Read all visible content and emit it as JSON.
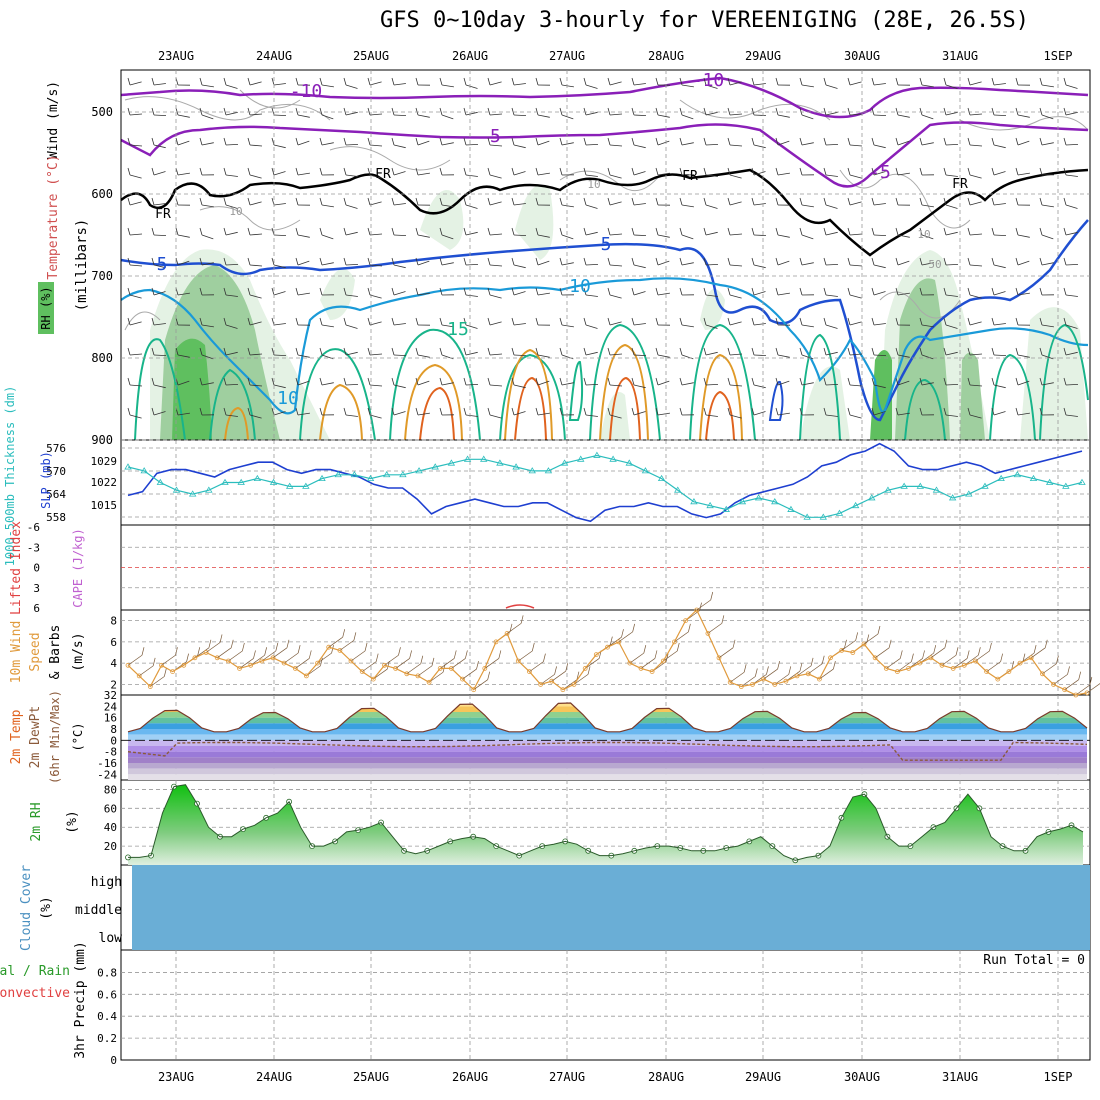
{
  "title": "GFS 0~10day 3-hourly for VEREENIGING (28E, 26.5S)",
  "dates": [
    "23AUG",
    "24AUG",
    "25AUG",
    "26AUG",
    "27AUG",
    "28AUG",
    "29AUG",
    "30AUG",
    "31AUG",
    "1SEP"
  ],
  "colors": {
    "temp_cold": "#8a1fb8",
    "temp_fr": "#000000",
    "temp_5": "#1f4fd1",
    "temp_10": "#1a9ad8",
    "temp_15": "#18b48a",
    "temp_20": "#e09a28",
    "temp_25": "#e0621e",
    "rh_light": "#e4f2e4",
    "rh_mid": "#9fcf9f",
    "rh_dark": "#5fbf5f",
    "slp": "#1e3fd0",
    "thickness": "#2bbdbd",
    "wind": "#e09a3c",
    "rh2m": "#2a8a2a",
    "dewpt": "#8b5a3a",
    "cloud": "#6aaed6",
    "grid": "#999999"
  },
  "panels": {
    "upper": {
      "ylabel_wind": "Wind (m/s)",
      "ylabel_temp": "Temperature (°C)",
      "ylabel_rh": "RH (%)",
      "ylabel_p": "(millibars)",
      "yticks": [
        "500",
        "600",
        "700",
        "800",
        "900"
      ],
      "contour_labels": [
        "-10",
        "-10",
        "-5",
        "-5",
        "FR",
        "FR",
        "FR",
        "FR",
        "FR",
        "5",
        "5",
        "10",
        "10",
        "15",
        "10",
        "10",
        "10",
        "50"
      ]
    },
    "slp": {
      "ylabel_thk": "1000-500mb Thickness (dm)",
      "ylabel_slp": "SLP (mb)",
      "thk_ticks": [
        "576",
        "570",
        "564",
        "558"
      ],
      "slp_ticks": [
        "1029",
        "1022",
        "1015"
      ]
    },
    "lifted": {
      "ylabel_li": "Lifted Index",
      "ylabel_cape": "CAPE (J/kg)",
      "ticks": [
        "-6",
        "-3",
        "0",
        "3",
        "6"
      ]
    },
    "wind10": {
      "ylabel1": "10m Wind",
      "ylabel2": "Speed",
      "ylabel3": "& Barbs",
      "unit": "(m/s)",
      "ticks": [
        "8",
        "6",
        "4",
        "2"
      ]
    },
    "temp2m": {
      "ylabel1": "2m Temp",
      "ylabel2": "2m DewPt",
      "ylabel3": "(6hr Min/Max)",
      "unit": "(°C)",
      "ticks": [
        "32",
        "24",
        "16",
        "8",
        "0",
        "-8",
        "-16",
        "-24"
      ]
    },
    "rh2m": {
      "ylabel": "2m RH",
      "unit": "(%)",
      "ticks": [
        "80",
        "60",
        "40",
        "20"
      ]
    },
    "cloud": {
      "ylabel": "Cloud Cover",
      "unit": "(%)",
      "levels": [
        "high",
        "middle",
        "low"
      ]
    },
    "precip": {
      "ylabel": "3hr Precip (mm)",
      "legend1": "Total / Rain",
      "legend2": "Convective",
      "run_total": "Run Total = 0",
      "ticks": [
        "0.8",
        "0.6",
        "0.4",
        "0.2",
        "0"
      ]
    }
  },
  "chart_data": [
    {
      "type": "line",
      "name": "2m RH",
      "xlabel": "",
      "ylabel": "2m RH (%)",
      "ylim": [
        0,
        90
      ],
      "x_step_hours": 3,
      "values": [
        8,
        8,
        10,
        55,
        83,
        85,
        65,
        40,
        30,
        30,
        38,
        42,
        50,
        55,
        67,
        40,
        20,
        20,
        25,
        35,
        37,
        40,
        45,
        30,
        15,
        12,
        15,
        20,
        25,
        28,
        30,
        28,
        20,
        15,
        10,
        15,
        20,
        22,
        25,
        22,
        15,
        10,
        10,
        12,
        15,
        18,
        20,
        20,
        18,
        15,
        15,
        15,
        18,
        20,
        25,
        30,
        20,
        10,
        5,
        8,
        10,
        20,
        50,
        72,
        75,
        60,
        30,
        20,
        20,
        30,
        40,
        45,
        60,
        75,
        60,
        30,
        20,
        15,
        15,
        30,
        35,
        38,
        42,
        35
      ]
    },
    {
      "type": "line",
      "name": "10m Wind Speed",
      "xlabel": "",
      "ylabel": "(m/s)",
      "ylim": [
        1,
        9
      ],
      "x_step_hours": 3,
      "values": [
        3.8,
        2.8,
        1.8,
        3.8,
        3.2,
        3.8,
        4.5,
        5,
        4.5,
        4.2,
        3.5,
        3.8,
        4.2,
        4.5,
        4,
        3.5,
        2.8,
        4,
        5.5,
        5.2,
        4.2,
        3.2,
        2.5,
        3.8,
        3.5,
        3,
        2.8,
        2.2,
        3.5,
        3.5,
        2.5,
        1.5,
        3.5,
        6,
        6.8,
        4.2,
        3.2,
        2,
        2.3,
        1.5,
        2,
        3.5,
        4.8,
        5.5,
        6,
        4,
        3.5,
        3.2,
        4.2,
        6,
        8,
        9,
        6.8,
        4.5,
        2.2,
        1.8,
        2,
        2.5,
        2,
        2.3,
        2.8,
        3,
        2.5,
        4.5,
        5.2,
        5,
        5.8,
        4.5,
        3.5,
        3.2,
        3.5,
        4,
        4.5,
        3.8,
        3.5,
        3.8,
        4.2,
        3.2,
        2.5,
        3.2,
        4,
        4.5,
        3,
        2,
        1.5,
        1,
        1.2
      ]
    },
    {
      "type": "line",
      "name": "SLP",
      "xlabel": "",
      "ylabel": "SLP (mb)",
      "ylim": [
        1010,
        1033
      ],
      "x_step_hours": 3,
      "values": [
        1018,
        1019,
        1024,
        1025,
        1025,
        1024,
        1023,
        1025,
        1026,
        1027,
        1027,
        1025,
        1024,
        1025,
        1025,
        1024,
        1023,
        1021,
        1020,
        1020,
        1017,
        1013,
        1015,
        1016,
        1017,
        1016,
        1015,
        1015,
        1016,
        1016,
        1014,
        1012,
        1011,
        1014,
        1015,
        1015,
        1016,
        1015,
        1015,
        1013,
        1012,
        1013,
        1016,
        1018,
        1019,
        1020,
        1021,
        1023,
        1026,
        1027,
        1029,
        1030,
        1032,
        1030,
        1026,
        1025,
        1025,
        1026,
        1027,
        1026,
        1024,
        1025,
        1026,
        1027,
        1028,
        1029,
        1030
      ]
    },
    {
      "type": "line",
      "name": "1000-500mb Thickness",
      "xlabel": "",
      "ylabel": "Thickness (dm)",
      "ylim": [
        556,
        578
      ],
      "x_step_hours": 3,
      "values": [
        571,
        570,
        567,
        565,
        564,
        565,
        567,
        567,
        568,
        567,
        566,
        566,
        568,
        569,
        569,
        568,
        569,
        569,
        570,
        571,
        572,
        573,
        573,
        572,
        571,
        570,
        570,
        572,
        573,
        574,
        573,
        572,
        570,
        568,
        565,
        562,
        561,
        560,
        562,
        563,
        562,
        560,
        558,
        558,
        559,
        561,
        563,
        565,
        566,
        566,
        565,
        563,
        564,
        566,
        568,
        569,
        568,
        567,
        566,
        567
      ]
    }
  ]
}
